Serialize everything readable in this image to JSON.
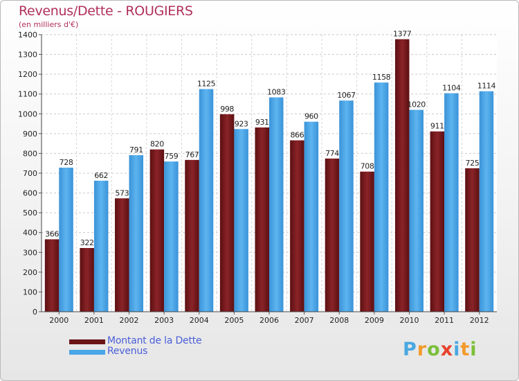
{
  "title": "Revenus/Dette - ROUGIERS",
  "subtitle": "(en milliers d'€)",
  "logo": {
    "letters": [
      "P",
      "r",
      "o",
      "x",
      "i",
      "t",
      "i"
    ],
    "colors": [
      "#4aa8e0",
      "#f39a2b",
      "#7bbf3a",
      "#e8412c",
      "#4aa8e0",
      "#f39a2b",
      "#7bbf3a"
    ]
  },
  "colors": {
    "dette": "#7a1a1e",
    "revenus": "#4aa6e8",
    "title": "#b0305a",
    "legend_text": "#4a5ed8"
  },
  "chart_data": {
    "type": "bar",
    "title": "Revenus/Dette - ROUGIERS",
    "subtitle": "(en milliers d'€)",
    "xlabel": "",
    "ylabel": "",
    "categories": [
      "2000",
      "2001",
      "2002",
      "2003",
      "2004",
      "2005",
      "2006",
      "2007",
      "2008",
      "2009",
      "2010",
      "2011",
      "2012"
    ],
    "series": [
      {
        "name": "Montant de la Dette",
        "values": [
          366,
          322,
          573,
          820,
          767,
          998,
          931,
          866,
          774,
          708,
          1377,
          911,
          725
        ]
      },
      {
        "name": "Revenus",
        "values": [
          728,
          662,
          791,
          759,
          1125,
          923,
          1083,
          960,
          1067,
          1158,
          1020,
          1104,
          1114
        ]
      }
    ],
    "ylim": [
      0,
      1400
    ],
    "yticks": [
      0,
      100,
      200,
      300,
      400,
      500,
      600,
      700,
      800,
      900,
      1000,
      1100,
      1200,
      1300,
      1400
    ],
    "grid": true,
    "legend_position": "bottom-left"
  }
}
